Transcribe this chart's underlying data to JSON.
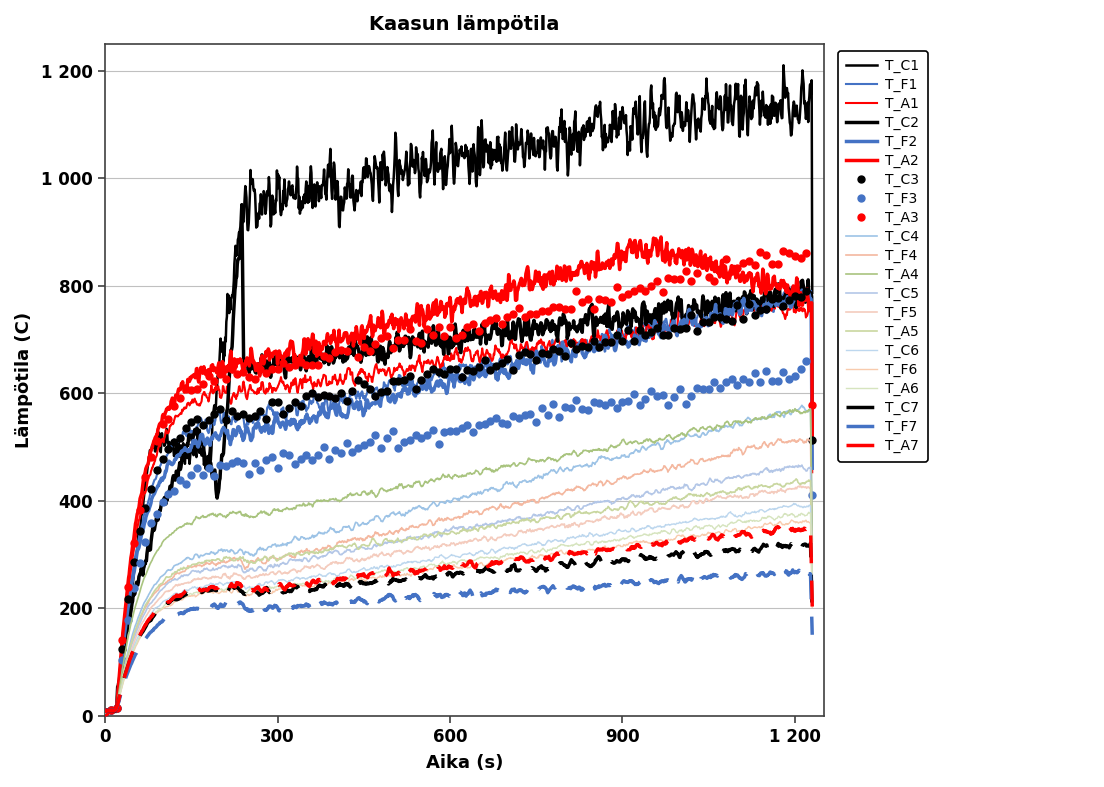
{
  "title": "Kaasun lämpötila",
  "xlabel": "Aika (s)",
  "ylabel": "Lämpötila (C)",
  "xlim": [
    0,
    1250
  ],
  "ylim": [
    0,
    1250
  ],
  "xticks": [
    0,
    300,
    600,
    900,
    1200
  ],
  "yticks": [
    0,
    200,
    400,
    600,
    800,
    1000,
    1200
  ],
  "xticklabels": [
    "0",
    "300",
    "600",
    "900",
    "1 200"
  ],
  "yticklabels": [
    "0",
    "200",
    "400",
    "600",
    "800",
    "1 000",
    "1 200"
  ],
  "series": [
    {
      "name": "T_C1",
      "color": "#000000",
      "lw": 1.8,
      "style": "solid"
    },
    {
      "name": "T_F1",
      "color": "#4472C4",
      "lw": 1.5,
      "style": "solid"
    },
    {
      "name": "T_A1",
      "color": "#FF0000",
      "lw": 1.5,
      "style": "solid"
    },
    {
      "name": "T_C2",
      "color": "#000000",
      "lw": 2.5,
      "style": "solid"
    },
    {
      "name": "T_F2",
      "color": "#4472C4",
      "lw": 2.5,
      "style": "solid"
    },
    {
      "name": "T_A2",
      "color": "#FF0000",
      "lw": 2.5,
      "style": "solid"
    },
    {
      "name": "T_C3",
      "color": "#000000",
      "lw": 3.5,
      "style": "dotted"
    },
    {
      "name": "T_F3",
      "color": "#4472C4",
      "lw": 3.5,
      "style": "dotted"
    },
    {
      "name": "T_A3",
      "color": "#FF0000",
      "lw": 3.5,
      "style": "dotted"
    },
    {
      "name": "T_C4",
      "color": "#9DC3E6",
      "lw": 1.2,
      "style": "solid"
    },
    {
      "name": "T_F4",
      "color": "#F4B8A0",
      "lw": 1.2,
      "style": "solid"
    },
    {
      "name": "T_A4",
      "color": "#A9C47F",
      "lw": 1.2,
      "style": "solid"
    },
    {
      "name": "T_C5",
      "color": "#B4C7E7",
      "lw": 1.2,
      "style": "solid"
    },
    {
      "name": "T_F5",
      "color": "#F4CCBE",
      "lw": 1.2,
      "style": "solid"
    },
    {
      "name": "T_A5",
      "color": "#C9D7A0",
      "lw": 1.2,
      "style": "solid"
    },
    {
      "name": "T_C6",
      "color": "#BDD7EE",
      "lw": 1.0,
      "style": "solid"
    },
    {
      "name": "T_F6",
      "color": "#F8CBAD",
      "lw": 1.0,
      "style": "solid"
    },
    {
      "name": "T_A6",
      "color": "#D6E4BE",
      "lw": 1.0,
      "style": "solid"
    },
    {
      "name": "T_C7",
      "color": "#000000",
      "lw": 2.5,
      "style": "dashed"
    },
    {
      "name": "T_F7",
      "color": "#4472C4",
      "lw": 2.5,
      "style": "dashed"
    },
    {
      "name": "T_A7",
      "color": "#FF0000",
      "lw": 2.5,
      "style": "dashed"
    }
  ],
  "background_color": "#FFFFFF",
  "plot_bg_color": "#FFFFFF",
  "grid_color": "#C0C0C0",
  "figsize": [
    11.04,
    7.87
  ],
  "dpi": 100
}
